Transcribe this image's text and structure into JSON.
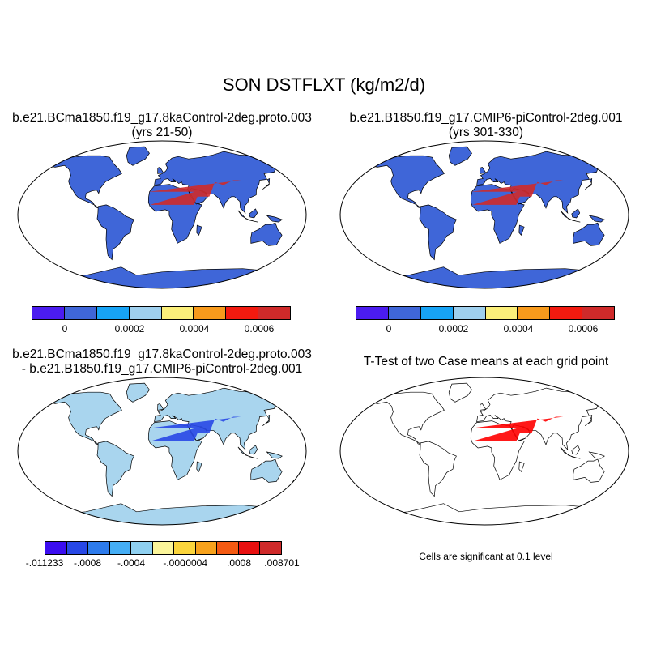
{
  "title": "SON DSTFLXT (kg/m2/d)",
  "panels": {
    "p1": {
      "line1": "b.e21.BCma1850.f19_g17.8kaControl-2deg.proto.003",
      "line2": "(yrs 21-50)"
    },
    "p2": {
      "line1": "b.e21.B1850.f19_g17.CMIP6-piControl-2deg.001",
      "line2": "(yrs 301-330)"
    },
    "p3": {
      "line1": "b.e21.BCma1850.f19_g17.8kaControl-2deg.proto.003",
      "line2": "- b.e21.B1850.f19_g17.CMIP6-piControl-2deg.001"
    },
    "p4": {
      "line1": "T-Test of two Case means at each grid point",
      "note": "Cells are significant at 0.1 level"
    }
  },
  "colorbar_abs": {
    "colors": [
      "#4b1cf0",
      "#3f66d8",
      "#17a3f5",
      "#9fd0ee",
      "#fbef7a",
      "#f79a1c",
      "#f21a0f",
      "#cf2a2a"
    ],
    "labels": [
      "0",
      "0.0002",
      "0.0004",
      "0.0006"
    ]
  },
  "colorbar_diff": {
    "colors": [
      "#3b0df0",
      "#2848e6",
      "#2d7bec",
      "#45aef5",
      "#8fd0f0",
      "#fbf59a",
      "#fbd53c",
      "#f7a21c",
      "#f45a12",
      "#e81010",
      "#cf2a2a"
    ],
    "labels": [
      "-.011233",
      "-.0008",
      "-.0004",
      "-.000",
      ".0004",
      ".0008",
      ".008701"
    ]
  },
  "colors": {
    "ocean_fill": "#ffffff",
    "land_abs": "#3f66d8",
    "land_diff": "#a9d5ee",
    "diff_ocean": "#fbf59a",
    "signif": "#ff0000"
  }
}
